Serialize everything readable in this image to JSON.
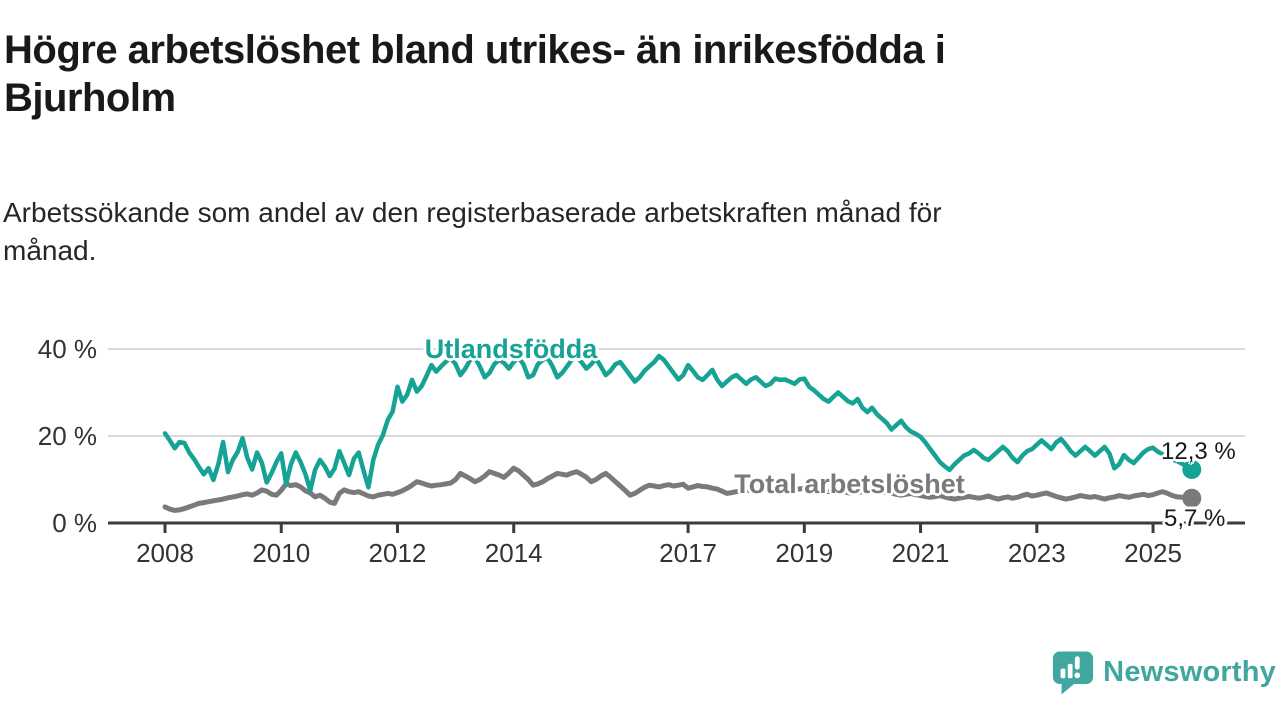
{
  "header": {
    "title_lines": [
      "Högre arbetslöshet bland utrikes- än inrikesfödda i",
      "Bjurholm"
    ],
    "subtitle_lines": [
      "Arbetssökande som andel av den registerbaserade arbetskraften månad för",
      "månad."
    ]
  },
  "chart_data": {
    "type": "line",
    "unit": "%",
    "x_interval": "monthly",
    "x_start": "2008-01",
    "x_end": "2025-09",
    "ylim": [
      0,
      44
    ],
    "grid": "horizontal",
    "y_ticks": [
      {
        "value": 0,
        "label": "0 %"
      },
      {
        "value": 20,
        "label": "20 %"
      },
      {
        "value": 40,
        "label": "40 %"
      }
    ],
    "x_ticks": [
      2008,
      2010,
      2012,
      2014,
      2017,
      2019,
      2021,
      2023,
      2025
    ],
    "series": [
      {
        "name": "Utlandsfödda",
        "color": "#16a294",
        "end_value_label": "12,3 %",
        "end_value": 12.3,
        "values": [
          20.6,
          19.0,
          17.2,
          18.6,
          18.4,
          16.2,
          14.7,
          12.9,
          11.2,
          12.6,
          9.9,
          13.5,
          18.6,
          11.7,
          14.5,
          16.3,
          19.5,
          15.0,
          12.3,
          16.2,
          13.8,
          9.3,
          11.5,
          14.0,
          16.0,
          9.0,
          13.5,
          16.2,
          14.0,
          11.2,
          7.5,
          12.2,
          14.5,
          13.0,
          10.8,
          12.5,
          16.5,
          13.8,
          11.0,
          14.8,
          16.2,
          12.0,
          8.2,
          14.5,
          18.0,
          20.2,
          23.7,
          25.6,
          31.3,
          27.9,
          29.5,
          32.9,
          30.2,
          31.5,
          33.8,
          36.3,
          34.8,
          36.0,
          37.1,
          37.9,
          36.5,
          34.0,
          35.5,
          37.5,
          38.0,
          36.0,
          33.5,
          34.5,
          36.5,
          37.5,
          36.8,
          35.5,
          37.0,
          38.0,
          36.5,
          33.5,
          34.0,
          36.5,
          37.5,
          38.0,
          36.0,
          33.5,
          34.5,
          36.0,
          37.5,
          38.2,
          37.0,
          35.5,
          36.5,
          37.8,
          36.0,
          34.0,
          35.0,
          36.5,
          37.0,
          35.5,
          34.0,
          32.5,
          33.5,
          35.0,
          36.0,
          37.0,
          38.4,
          37.5,
          36.0,
          34.5,
          33.0,
          34.0,
          36.3,
          35.0,
          33.5,
          32.9,
          34.0,
          35.2,
          33.0,
          31.5,
          32.5,
          33.5,
          34.0,
          33.0,
          32.0,
          33.0,
          33.5,
          32.5,
          31.5,
          32.0,
          33.2,
          32.9,
          33.0,
          32.5,
          32.0,
          33.0,
          33.2,
          31.3,
          30.5,
          29.5,
          28.5,
          27.9,
          29.0,
          30.0,
          29.0,
          28.0,
          27.5,
          28.5,
          26.5,
          25.5,
          26.5,
          25.0,
          24.0,
          23.0,
          21.5,
          22.5,
          23.5,
          22.0,
          21.0,
          20.5,
          19.8,
          18.5,
          17.0,
          15.5,
          14.0,
          13.0,
          12.2,
          13.5,
          14.5,
          15.5,
          16.0,
          16.8,
          16.0,
          15.0,
          14.5,
          15.5,
          16.5,
          17.5,
          16.5,
          15.0,
          14.0,
          15.5,
          16.5,
          17.0,
          18.0,
          19.0,
          18.0,
          17.0,
          18.5,
          19.3,
          18.0,
          16.5,
          15.5,
          16.5,
          17.5,
          16.5,
          15.5,
          16.5,
          17.5,
          16.0,
          12.6,
          13.5,
          15.6,
          14.5,
          13.8,
          15.0,
          16.2,
          17.0,
          17.3,
          16.4,
          15.8,
          15.2,
          14.6,
          14.2,
          13.6,
          13.0,
          12.3
        ]
      },
      {
        "name": "Total arbetslöshet",
        "color": "#7a7a7a",
        "end_value_label": "5,7 %",
        "end_value": 5.7,
        "values": [
          3.7,
          3.2,
          2.9,
          3.0,
          3.3,
          3.7,
          4.1,
          4.5,
          4.7,
          4.9,
          5.1,
          5.3,
          5.5,
          5.8,
          6.0,
          6.2,
          6.5,
          6.7,
          6.4,
          6.9,
          7.6,
          7.3,
          6.6,
          6.4,
          7.5,
          9.0,
          8.6,
          8.8,
          8.3,
          7.4,
          6.9,
          6.0,
          6.4,
          5.7,
          4.8,
          4.5,
          6.8,
          7.6,
          7.2,
          7.0,
          7.2,
          6.7,
          6.2,
          6.0,
          6.4,
          6.6,
          6.8,
          6.6,
          7.0,
          7.4,
          8.0,
          8.7,
          9.5,
          9.2,
          8.8,
          8.5,
          8.7,
          8.8,
          9.0,
          9.2,
          10.0,
          11.4,
          10.8,
          10.2,
          9.5,
          10.0,
          10.8,
          11.8,
          11.4,
          11.0,
          10.5,
          11.5,
          12.6,
          12.0,
          11.0,
          10.0,
          8.7,
          9.0,
          9.5,
          10.2,
          10.8,
          11.4,
          11.2,
          11.0,
          11.5,
          11.8,
          11.2,
          10.5,
          9.5,
          10.0,
          10.8,
          11.4,
          10.5,
          9.5,
          8.5,
          7.5,
          6.4,
          6.8,
          7.5,
          8.2,
          8.7,
          8.5,
          8.3,
          8.6,
          8.8,
          8.5,
          8.7,
          8.9,
          8.0,
          8.3,
          8.6,
          8.4,
          8.3,
          8.0,
          7.8,
          7.3,
          6.8,
          7.0,
          7.2,
          7.4,
          7.6,
          7.3,
          7.5,
          7.8,
          7.6,
          7.4,
          7.6,
          7.9,
          8.1,
          8.3,
          8.0,
          7.8,
          8.0,
          8.2,
          7.9,
          7.6,
          7.4,
          7.2,
          7.4,
          7.6,
          7.3,
          7.0,
          6.8,
          7.0,
          7.2,
          7.4,
          7.1,
          6.8,
          7.0,
          7.2,
          6.9,
          6.6,
          6.4,
          6.6,
          6.8,
          6.5,
          6.3,
          6.1,
          5.9,
          6.1,
          6.3,
          6.0,
          5.7,
          5.5,
          5.7,
          5.9,
          6.1,
          5.9,
          5.7,
          5.9,
          6.2,
          5.8,
          5.5,
          5.8,
          6.0,
          5.7,
          5.9,
          6.3,
          6.6,
          6.2,
          6.4,
          6.7,
          6.9,
          6.5,
          6.1,
          5.8,
          5.5,
          5.7,
          6.0,
          6.3,
          6.1,
          5.9,
          6.1,
          5.8,
          5.5,
          5.8,
          6.0,
          6.3,
          6.1,
          5.9,
          6.2,
          6.4,
          6.6,
          6.3,
          6.5,
          6.9,
          7.2,
          6.8,
          6.3,
          6.0,
          5.9,
          5.8,
          5.7
        ]
      }
    ]
  },
  "footer": {
    "brand": "Newsworthy",
    "brand_color": "#3fa7a0"
  }
}
